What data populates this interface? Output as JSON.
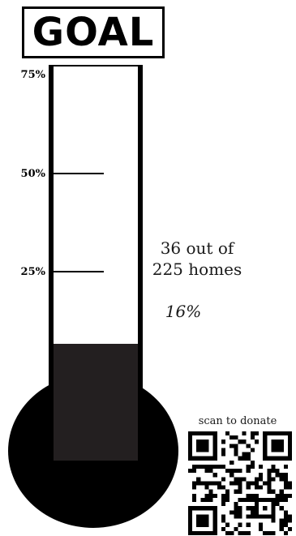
{
  "header": {
    "title": "GOAL"
  },
  "thermometer": {
    "scale": [
      {
        "label": "75%",
        "value": 75
      },
      {
        "label": "50%",
        "value": 50
      },
      {
        "label": "25%",
        "value": 25
      }
    ],
    "progress_percent": 16,
    "progress_label": "16%",
    "homes_done": "36 out of",
    "homes_total": "225 homes",
    "fill_color": "#231f20",
    "outline_color": "#000000"
  },
  "donate": {
    "caption": "scan to donate",
    "qr_icon": "qr-code-icon"
  }
}
